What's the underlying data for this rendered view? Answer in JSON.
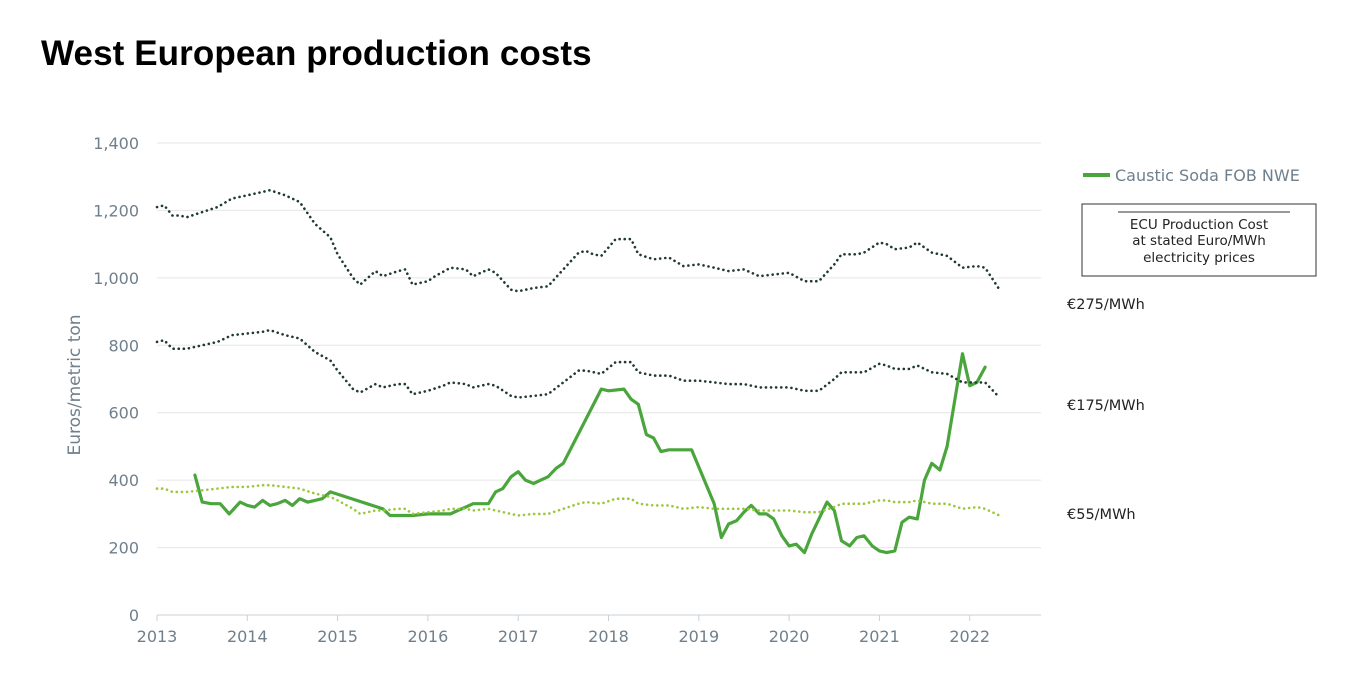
{
  "title": "West European production costs",
  "chart_data": {
    "type": "line",
    "title": "West European production costs",
    "xlabel": "",
    "ylabel": "Euros/metric ton",
    "xlim": [
      2013,
      2023
    ],
    "ylim": [
      0,
      1400
    ],
    "x_ticks": [
      2013,
      2014,
      2015,
      2016,
      2017,
      2018,
      2019,
      2020,
      2021,
      2022
    ],
    "y_ticks": [
      0,
      200,
      400,
      600,
      800,
      1000,
      1200,
      1400
    ],
    "y_tick_labels": [
      "0",
      "200",
      "400",
      "600",
      "800",
      "1,000",
      "1,200",
      "1,400"
    ],
    "legend": {
      "entry": "Caustic Soda FOB NWE",
      "box_lines": [
        "ECU Production Cost",
        "at stated Euro/MWh",
        "electricity prices"
      ]
    },
    "series": [
      {
        "name": "Caustic Soda FOB NWE",
        "style": "solid",
        "color": "#4aa63c",
        "points": [
          [
            2013.42,
            415
          ],
          [
            2013.5,
            335
          ],
          [
            2013.6,
            330
          ],
          [
            2013.7,
            330
          ],
          [
            2013.8,
            300
          ],
          [
            2013.92,
            335
          ],
          [
            2014.0,
            325
          ],
          [
            2014.08,
            320
          ],
          [
            2014.17,
            340
          ],
          [
            2014.25,
            325
          ],
          [
            2014.33,
            330
          ],
          [
            2014.42,
            340
          ],
          [
            2014.5,
            325
          ],
          [
            2014.58,
            345
          ],
          [
            2014.67,
            335
          ],
          [
            2014.75,
            340
          ],
          [
            2014.83,
            345
          ],
          [
            2014.92,
            365
          ],
          [
            2015.5,
            315
          ],
          [
            2015.58,
            295
          ],
          [
            2015.75,
            295
          ],
          [
            2015.83,
            295
          ],
          [
            2016.0,
            300
          ],
          [
            2016.08,
            300
          ],
          [
            2016.17,
            300
          ],
          [
            2016.25,
            300
          ],
          [
            2016.33,
            310
          ],
          [
            2016.42,
            320
          ],
          [
            2016.5,
            330
          ],
          [
            2016.58,
            330
          ],
          [
            2016.67,
            330
          ],
          [
            2016.75,
            365
          ],
          [
            2016.83,
            375
          ],
          [
            2016.92,
            410
          ],
          [
            2017.0,
            425
          ],
          [
            2017.08,
            400
          ],
          [
            2017.17,
            390
          ],
          [
            2017.25,
            400
          ],
          [
            2017.33,
            410
          ],
          [
            2017.42,
            435
          ],
          [
            2017.5,
            450
          ],
          [
            2017.92,
            670
          ],
          [
            2018.0,
            665
          ],
          [
            2018.17,
            670
          ],
          [
            2018.25,
            640
          ],
          [
            2018.33,
            625
          ],
          [
            2018.42,
            535
          ],
          [
            2018.5,
            525
          ],
          [
            2018.58,
            485
          ],
          [
            2018.67,
            490
          ],
          [
            2018.92,
            490
          ],
          [
            2019.17,
            330
          ],
          [
            2019.25,
            230
          ],
          [
            2019.33,
            270
          ],
          [
            2019.42,
            280
          ],
          [
            2019.5,
            305
          ],
          [
            2019.58,
            325
          ],
          [
            2019.67,
            300
          ],
          [
            2019.75,
            300
          ],
          [
            2019.83,
            285
          ],
          [
            2019.92,
            235
          ],
          [
            2020.0,
            205
          ],
          [
            2020.08,
            210
          ],
          [
            2020.17,
            185
          ],
          [
            2020.25,
            240
          ],
          [
            2020.42,
            335
          ],
          [
            2020.5,
            310
          ],
          [
            2020.58,
            220
          ],
          [
            2020.67,
            205
          ],
          [
            2020.75,
            230
          ],
          [
            2020.83,
            235
          ],
          [
            2020.92,
            205
          ],
          [
            2021.0,
            190
          ],
          [
            2021.08,
            185
          ],
          [
            2021.17,
            190
          ],
          [
            2021.25,
            275
          ],
          [
            2021.33,
            290
          ],
          [
            2021.42,
            285
          ],
          [
            2021.5,
            400
          ],
          [
            2021.58,
            450
          ],
          [
            2021.67,
            430
          ],
          [
            2021.75,
            500
          ],
          [
            2021.92,
            775
          ],
          [
            2022.0,
            680
          ],
          [
            2022.08,
            690
          ],
          [
            2022.17,
            735
          ]
        ]
      },
      {
        "name": "€275/MWh",
        "style": "dotted",
        "color": "#1f3b2b",
        "points": [
          [
            2013.0,
            1210
          ],
          [
            2013.08,
            1215
          ],
          [
            2013.17,
            1185
          ],
          [
            2013.25,
            1185
          ],
          [
            2013.33,
            1180
          ],
          [
            2013.5,
            1195
          ],
          [
            2013.67,
            1210
          ],
          [
            2013.83,
            1235
          ],
          [
            2014.0,
            1245
          ],
          [
            2014.17,
            1255
          ],
          [
            2014.25,
            1260
          ],
          [
            2014.42,
            1245
          ],
          [
            2014.58,
            1225
          ],
          [
            2014.75,
            1160
          ],
          [
            2014.92,
            1120
          ],
          [
            2015.0,
            1070
          ],
          [
            2015.17,
            1000
          ],
          [
            2015.25,
            980
          ],
          [
            2015.42,
            1020
          ],
          [
            2015.5,
            1005
          ],
          [
            2015.67,
            1020
          ],
          [
            2015.75,
            1025
          ],
          [
            2015.83,
            980
          ],
          [
            2016.0,
            990
          ],
          [
            2016.08,
            1005
          ],
          [
            2016.25,
            1030
          ],
          [
            2016.42,
            1025
          ],
          [
            2016.5,
            1005
          ],
          [
            2016.67,
            1025
          ],
          [
            2016.75,
            1015
          ],
          [
            2016.92,
            965
          ],
          [
            2017.0,
            960
          ],
          [
            2017.17,
            970
          ],
          [
            2017.33,
            975
          ],
          [
            2017.5,
            1025
          ],
          [
            2017.67,
            1075
          ],
          [
            2017.75,
            1080
          ],
          [
            2017.83,
            1070
          ],
          [
            2017.92,
            1065
          ],
          [
            2018.08,
            1115
          ],
          [
            2018.25,
            1115
          ],
          [
            2018.33,
            1070
          ],
          [
            2018.5,
            1055
          ],
          [
            2018.67,
            1060
          ],
          [
            2018.83,
            1035
          ],
          [
            2019.0,
            1040
          ],
          [
            2019.17,
            1030
          ],
          [
            2019.33,
            1020
          ],
          [
            2019.5,
            1025
          ],
          [
            2019.67,
            1005
          ],
          [
            2019.83,
            1010
          ],
          [
            2020.0,
            1015
          ],
          [
            2020.17,
            990
          ],
          [
            2020.33,
            990
          ],
          [
            2020.5,
            1040
          ],
          [
            2020.58,
            1070
          ],
          [
            2020.75,
            1070
          ],
          [
            2020.83,
            1075
          ],
          [
            2021.0,
            1105
          ],
          [
            2021.08,
            1100
          ],
          [
            2021.17,
            1085
          ],
          [
            2021.33,
            1090
          ],
          [
            2021.42,
            1105
          ],
          [
            2021.58,
            1075
          ],
          [
            2021.75,
            1065
          ],
          [
            2021.92,
            1030
          ],
          [
            2022.08,
            1035
          ],
          [
            2022.17,
            1030
          ],
          [
            2022.33,
            965
          ]
        ]
      },
      {
        "name": "€175/MWh",
        "style": "dotted",
        "color": "#1f3b2b",
        "points": [
          [
            2013.0,
            810
          ],
          [
            2013.08,
            815
          ],
          [
            2013.17,
            790
          ],
          [
            2013.33,
            790
          ],
          [
            2013.5,
            800
          ],
          [
            2013.67,
            810
          ],
          [
            2013.83,
            830
          ],
          [
            2014.0,
            835
          ],
          [
            2014.17,
            840
          ],
          [
            2014.25,
            845
          ],
          [
            2014.42,
            830
          ],
          [
            2014.58,
            820
          ],
          [
            2014.75,
            780
          ],
          [
            2014.92,
            755
          ],
          [
            2015.0,
            725
          ],
          [
            2015.17,
            670
          ],
          [
            2015.25,
            660
          ],
          [
            2015.42,
            685
          ],
          [
            2015.5,
            675
          ],
          [
            2015.67,
            685
          ],
          [
            2015.75,
            685
          ],
          [
            2015.83,
            655
          ],
          [
            2016.0,
            665
          ],
          [
            2016.17,
            680
          ],
          [
            2016.25,
            690
          ],
          [
            2016.42,
            685
          ],
          [
            2016.5,
            675
          ],
          [
            2016.67,
            685
          ],
          [
            2016.75,
            680
          ],
          [
            2016.92,
            650
          ],
          [
            2017.0,
            645
          ],
          [
            2017.17,
            650
          ],
          [
            2017.33,
            655
          ],
          [
            2017.5,
            690
          ],
          [
            2017.67,
            725
          ],
          [
            2017.75,
            725
          ],
          [
            2017.92,
            715
          ],
          [
            2018.08,
            750
          ],
          [
            2018.25,
            750
          ],
          [
            2018.33,
            720
          ],
          [
            2018.5,
            710
          ],
          [
            2018.67,
            710
          ],
          [
            2018.83,
            695
          ],
          [
            2019.0,
            695
          ],
          [
            2019.17,
            690
          ],
          [
            2019.33,
            685
          ],
          [
            2019.5,
            685
          ],
          [
            2019.67,
            675
          ],
          [
            2019.83,
            675
          ],
          [
            2020.0,
            675
          ],
          [
            2020.17,
            665
          ],
          [
            2020.33,
            665
          ],
          [
            2020.5,
            700
          ],
          [
            2020.58,
            720
          ],
          [
            2020.75,
            720
          ],
          [
            2020.83,
            720
          ],
          [
            2021.0,
            745
          ],
          [
            2021.08,
            740
          ],
          [
            2021.17,
            730
          ],
          [
            2021.33,
            730
          ],
          [
            2021.42,
            740
          ],
          [
            2021.58,
            720
          ],
          [
            2021.75,
            715
          ],
          [
            2021.92,
            690
          ],
          [
            2022.08,
            690
          ],
          [
            2022.17,
            690
          ],
          [
            2022.33,
            645
          ]
        ]
      },
      {
        "name": "€55/MWh",
        "style": "dotted",
        "color": "#99c93a",
        "points": [
          [
            2013.0,
            375
          ],
          [
            2013.08,
            375
          ],
          [
            2013.17,
            365
          ],
          [
            2013.33,
            365
          ],
          [
            2013.5,
            370
          ],
          [
            2013.67,
            375
          ],
          [
            2013.83,
            380
          ],
          [
            2014.0,
            380
          ],
          [
            2014.17,
            385
          ],
          [
            2014.25,
            385
          ],
          [
            2014.42,
            380
          ],
          [
            2014.58,
            375
          ],
          [
            2014.75,
            360
          ],
          [
            2014.92,
            350
          ],
          [
            2015.0,
            340
          ],
          [
            2015.17,
            315
          ],
          [
            2015.25,
            300
          ],
          [
            2015.42,
            310
          ],
          [
            2015.5,
            310
          ],
          [
            2015.67,
            315
          ],
          [
            2015.75,
            315
          ],
          [
            2015.83,
            300
          ],
          [
            2016.0,
            305
          ],
          [
            2016.17,
            310
          ],
          [
            2016.25,
            315
          ],
          [
            2016.42,
            315
          ],
          [
            2016.5,
            310
          ],
          [
            2016.67,
            315
          ],
          [
            2016.75,
            310
          ],
          [
            2016.92,
            300
          ],
          [
            2017.0,
            295
          ],
          [
            2017.17,
            300
          ],
          [
            2017.33,
            300
          ],
          [
            2017.5,
            315
          ],
          [
            2017.67,
            330
          ],
          [
            2017.75,
            335
          ],
          [
            2017.92,
            330
          ],
          [
            2018.08,
            345
          ],
          [
            2018.25,
            345
          ],
          [
            2018.33,
            330
          ],
          [
            2018.5,
            325
          ],
          [
            2018.67,
            325
          ],
          [
            2018.83,
            315
          ],
          [
            2019.0,
            320
          ],
          [
            2019.17,
            315
          ],
          [
            2019.33,
            315
          ],
          [
            2019.5,
            315
          ],
          [
            2019.67,
            310
          ],
          [
            2019.83,
            310
          ],
          [
            2020.0,
            310
          ],
          [
            2020.17,
            305
          ],
          [
            2020.33,
            305
          ],
          [
            2020.5,
            320
          ],
          [
            2020.58,
            330
          ],
          [
            2020.75,
            330
          ],
          [
            2020.83,
            330
          ],
          [
            2021.0,
            340
          ],
          [
            2021.08,
            340
          ],
          [
            2021.17,
            335
          ],
          [
            2021.33,
            335
          ],
          [
            2021.42,
            340
          ],
          [
            2021.58,
            330
          ],
          [
            2021.75,
            330
          ],
          [
            2021.92,
            315
          ],
          [
            2022.08,
            320
          ],
          [
            2022.17,
            315
          ],
          [
            2022.33,
            295
          ]
        ]
      }
    ]
  }
}
